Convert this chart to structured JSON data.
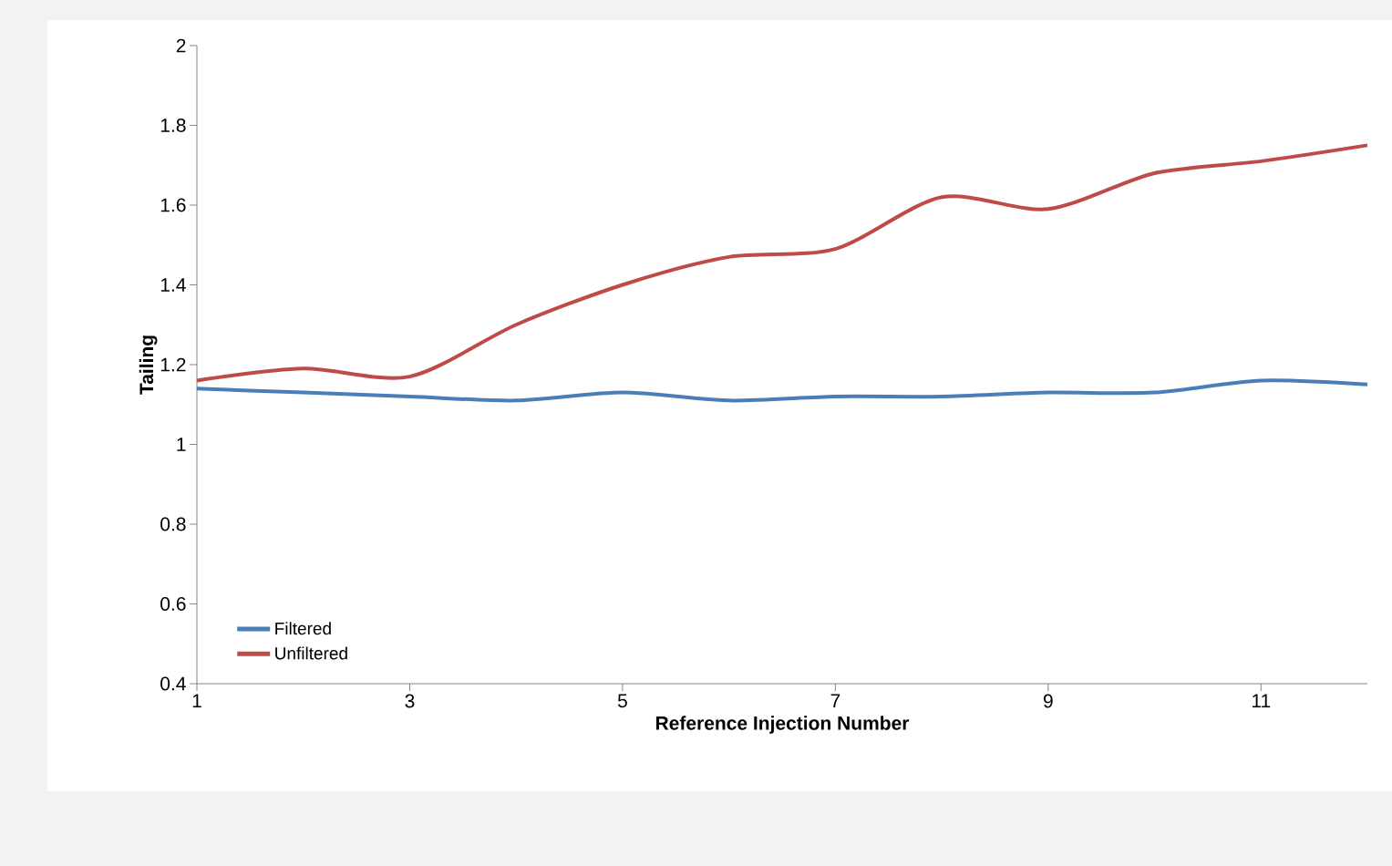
{
  "chart_data": {
    "type": "line",
    "xlabel": "Reference Injection Number",
    "ylabel": "Tailing",
    "x": [
      1,
      2,
      3,
      4,
      5,
      6,
      7,
      8,
      9,
      10,
      11,
      12
    ],
    "series": [
      {
        "name": "Filtered",
        "color": "#4a7ebb",
        "values": [
          1.14,
          1.13,
          1.12,
          1.11,
          1.13,
          1.11,
          1.12,
          1.12,
          1.13,
          1.13,
          1.16,
          1.15
        ]
      },
      {
        "name": "Unfiltered",
        "color": "#be4b48",
        "values": [
          1.16,
          1.19,
          1.17,
          1.3,
          1.4,
          1.47,
          1.49,
          1.62,
          1.59,
          1.68,
          1.71,
          1.75
        ]
      }
    ],
    "xlim": [
      1,
      12
    ],
    "xticks": [
      1,
      3,
      5,
      7,
      9,
      11
    ],
    "ylim": [
      0.4,
      2
    ],
    "yticks": [
      0.4,
      0.6,
      0.8,
      1,
      1.2,
      1.4,
      1.6,
      1.8,
      2
    ],
    "grid": false,
    "legend": "bottom left",
    "marker": "none",
    "line_style": "solid"
  }
}
